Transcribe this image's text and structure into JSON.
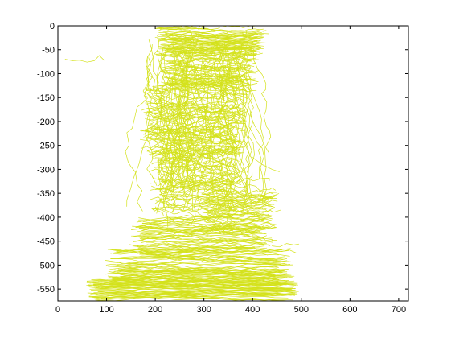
{
  "chart_data": {
    "type": "line",
    "title": "",
    "xlabel": "",
    "ylabel": "",
    "xlim": [
      0,
      720
    ],
    "ylim": [
      -575,
      0
    ],
    "x_ticks": [
      0,
      100,
      200,
      300,
      400,
      500,
      600,
      700
    ],
    "y_ticks": [
      0,
      -50,
      -100,
      -150,
      -200,
      -250,
      -300,
      -350,
      -400,
      -450,
      -500,
      -550
    ],
    "grid": false,
    "legend": "none",
    "line_color": "#d4e21c",
    "series_count_estimate": 400,
    "regions": [
      {
        "x": [
          200,
          430
        ],
        "y": [
          -5,
          -60
        ],
        "n": 55,
        "amp": 6
      },
      {
        "x": [
          210,
          410
        ],
        "y": [
          -60,
          -130
        ],
        "n": 45,
        "amp": 10
      },
      {
        "x": [
          170,
          390
        ],
        "y": [
          -130,
          -260
        ],
        "n": 60,
        "amp": 14
      },
      {
        "x": [
          190,
          380
        ],
        "y": [
          -260,
          -390
        ],
        "n": 55,
        "amp": 14
      },
      {
        "x": [
          290,
          455
        ],
        "y": [
          -330,
          -430
        ],
        "n": 40,
        "amp": 10
      },
      {
        "x": [
          150,
          440
        ],
        "y": [
          -400,
          -480
        ],
        "n": 50,
        "amp": 8
      },
      {
        "x": [
          100,
          480
        ],
        "y": [
          -470,
          -540
        ],
        "n": 55,
        "amp": 8
      },
      {
        "x": [
          60,
          495
        ],
        "y": [
          -530,
          -575
        ],
        "n": 45,
        "amp": 6
      }
    ],
    "outlier_paths": [
      {
        "x": [
          15,
          30,
          45,
          60,
          75,
          85,
          95
        ],
        "y": [
          -70,
          -73,
          -72,
          -76,
          -73,
          -62,
          -72
        ]
      },
      {
        "x": [
          440,
          455,
          470,
          485,
          495
        ],
        "y": [
          -460,
          -462,
          -455,
          -458,
          -456
        ]
      },
      {
        "x": [
          445,
          460,
          475,
          490
        ],
        "y": [
          -470,
          -472,
          -468,
          -475
        ]
      },
      {
        "x": [
          400,
          420,
          440,
          455
        ],
        "y": [
          -275,
          -290,
          -300,
          -305
        ]
      }
    ]
  }
}
